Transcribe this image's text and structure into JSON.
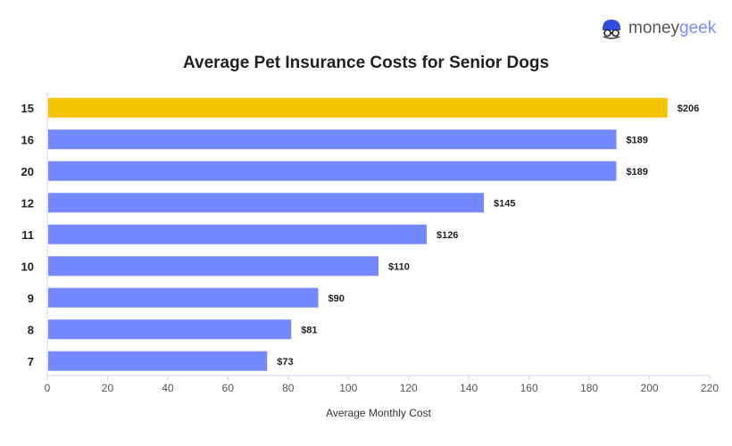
{
  "brand": {
    "name_part1": "money",
    "name_part2": "geek",
    "icon": "geek-face-logo-icon"
  },
  "chart_data": {
    "type": "bar",
    "orientation": "horizontal",
    "title": "Average Pet Insurance Costs for Senior Dogs",
    "xlabel": "Average Monthly Cost",
    "ylabel": "",
    "categories": [
      "15",
      "16",
      "20",
      "12",
      "11",
      "10",
      "9",
      "8",
      "7"
    ],
    "values": [
      206,
      189,
      189,
      145,
      126,
      110,
      90,
      81,
      73
    ],
    "data_labels": [
      "$206",
      "$189",
      "$189",
      "$145",
      "$126",
      "$110",
      "$90",
      "$81",
      "$73"
    ],
    "highlight_index": 0,
    "xlim": [
      0,
      220
    ],
    "xticks": [
      0,
      20,
      40,
      60,
      80,
      100,
      120,
      140,
      160,
      180,
      200,
      220
    ],
    "grid": false,
    "colors": {
      "default": "#7387ff",
      "highlight": "#f4c400"
    }
  }
}
